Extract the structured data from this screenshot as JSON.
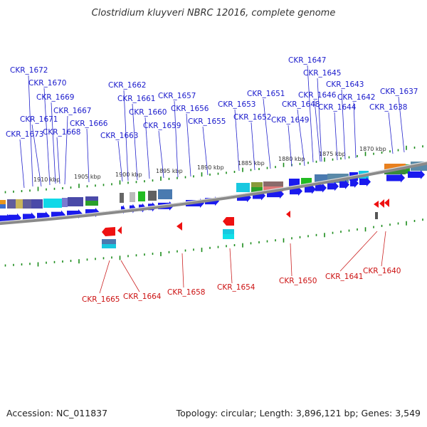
{
  "title": "Clostridium kluyveri NBRC 12016, complete genome",
  "footer": {
    "accession": "Accession: NC_011837",
    "topology": "Topology: circular; Length: 3,896,121 bp; Genes: 3,549"
  },
  "colors": {
    "forward_gene": "#1a1aee",
    "reverse_gene": "#ee1111",
    "forward_label": "#1a1acc",
    "reverse_label": "#cc1111",
    "backbone": "#8a8a8a",
    "tick": "#1a8c1a"
  },
  "kbp_labels": [
    "1910 kbp",
    "1905 kbp",
    "1900 kbp",
    "1895 kbp",
    "1890 kbp",
    "1885 kbp",
    "1880 kbp",
    "1875 kbp",
    "1870 kbp"
  ],
  "forward_labels": [
    "CKR_1672",
    "CKR_1670",
    "CKR_1669",
    "CKR_1667",
    "CKR_1671",
    "CKR_1666",
    "CKR_1673",
    "CKR_1668",
    "CKR_1662",
    "CKR_1661",
    "CKR_1660",
    "CKR_1663",
    "CKR_1659",
    "CKR_1657",
    "CKR_1656",
    "CKR_1655",
    "CKR_1653",
    "CKR_1652",
    "CKR_1651",
    "CKR_1649",
    "CKR_1648",
    "CKR_1647",
    "CKR_1645",
    "CKR_1646",
    "CKR_1644",
    "CKR_1643",
    "CKR_1642",
    "CKR_1638",
    "CKR_1637"
  ],
  "reverse_labels": [
    "CKR_1665",
    "CKR_1664",
    "CKR_1658",
    "CKR_1654",
    "CKR_1650",
    "CKR_1641",
    "CKR_1640"
  ]
}
